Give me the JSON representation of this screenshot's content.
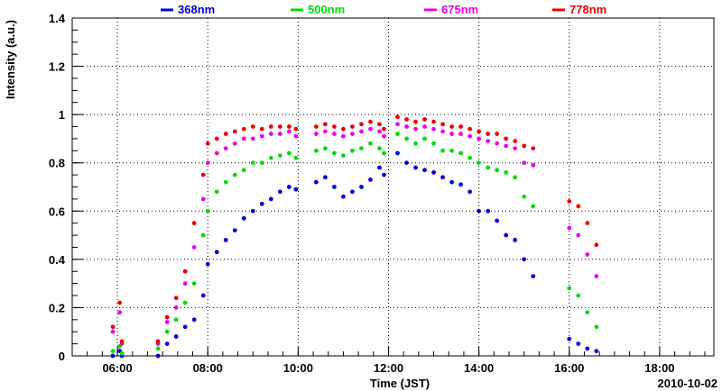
{
  "chart_data": {
    "type": "scatter",
    "title": "",
    "xlabel": "Time (JST)",
    "ylabel": "Intensity (a.u.)",
    "date": "2010-10-02",
    "xlim": [
      5.0,
      19.2
    ],
    "ylim": [
      0,
      1.4
    ],
    "x_ticks": [
      {
        "x": 6,
        "label": "06:00"
      },
      {
        "x": 8,
        "label": "08:00"
      },
      {
        "x": 10,
        "label": "10:00"
      },
      {
        "x": 12,
        "label": "12:00"
      },
      {
        "x": 14,
        "label": "14:00"
      },
      {
        "x": 16,
        "label": "16:00"
      },
      {
        "x": 18,
        "label": "18:00"
      }
    ],
    "y_ticks": [
      {
        "y": 0,
        "label": "0"
      },
      {
        "y": 0.2,
        "label": "0.2"
      },
      {
        "y": 0.4,
        "label": "0.4"
      },
      {
        "y": 0.6,
        "label": "0.6"
      },
      {
        "y": 0.8,
        "label": "0.8"
      },
      {
        "y": 1.0,
        "label": "1"
      },
      {
        "y": 1.2,
        "label": "1.2"
      },
      {
        "y": 1.4,
        "label": "1.4"
      }
    ],
    "grid": true,
    "legend_position": "top",
    "series": [
      {
        "name": "368nm",
        "color": "#0000dd",
        "x": [
          5.9,
          6.05,
          6.1,
          6.9,
          7.1,
          7.3,
          7.5,
          7.7,
          7.9,
          8.0,
          8.2,
          8.4,
          8.6,
          8.8,
          9.0,
          9.2,
          9.4,
          9.6,
          9.8,
          9.95,
          10.4,
          10.6,
          10.8,
          11.0,
          11.2,
          11.4,
          11.6,
          11.8,
          11.9,
          12.2,
          12.4,
          12.6,
          12.8,
          13.0,
          13.2,
          13.4,
          13.6,
          13.8,
          14.0,
          14.2,
          14.4,
          14.6,
          14.8,
          15.0,
          15.2,
          16.0,
          16.2,
          16.4,
          16.6
        ],
        "y": [
          0.0,
          0.02,
          0.0,
          0.0,
          0.05,
          0.08,
          0.12,
          0.15,
          0.25,
          0.38,
          0.43,
          0.48,
          0.52,
          0.57,
          0.6,
          0.63,
          0.65,
          0.68,
          0.7,
          0.69,
          0.72,
          0.74,
          0.7,
          0.66,
          0.68,
          0.7,
          0.73,
          0.78,
          0.75,
          0.84,
          0.8,
          0.78,
          0.77,
          0.76,
          0.74,
          0.72,
          0.71,
          0.68,
          0.6,
          0.6,
          0.56,
          0.5,
          0.48,
          0.4,
          0.33,
          0.07,
          0.05,
          0.03,
          0.02
        ]
      },
      {
        "name": "500nm",
        "color": "#00dd00",
        "x": [
          5.9,
          6.05,
          6.1,
          6.9,
          7.1,
          7.3,
          7.5,
          7.7,
          7.9,
          8.0,
          8.2,
          8.4,
          8.6,
          8.8,
          9.0,
          9.2,
          9.4,
          9.6,
          9.8,
          9.95,
          10.4,
          10.6,
          10.8,
          11.0,
          11.2,
          11.4,
          11.6,
          11.8,
          11.9,
          12.2,
          12.4,
          12.6,
          12.8,
          13.0,
          13.2,
          13.4,
          13.6,
          13.8,
          14.0,
          14.2,
          14.4,
          14.6,
          14.8,
          15.0,
          15.2,
          16.0,
          16.2,
          16.4,
          16.6
        ],
        "y": [
          0.02,
          0.04,
          0.01,
          0.03,
          0.1,
          0.15,
          0.22,
          0.3,
          0.5,
          0.6,
          0.68,
          0.72,
          0.75,
          0.77,
          0.8,
          0.8,
          0.82,
          0.83,
          0.84,
          0.82,
          0.85,
          0.86,
          0.84,
          0.83,
          0.85,
          0.86,
          0.88,
          0.86,
          0.84,
          0.92,
          0.9,
          0.88,
          0.9,
          0.88,
          0.85,
          0.85,
          0.84,
          0.82,
          0.8,
          0.78,
          0.77,
          0.76,
          0.74,
          0.66,
          0.62,
          0.28,
          0.25,
          0.18,
          0.12
        ]
      },
      {
        "name": "675nm",
        "color": "#ee00ee",
        "x": [
          5.9,
          6.05,
          6.1,
          6.9,
          7.1,
          7.3,
          7.5,
          7.7,
          7.9,
          8.0,
          8.2,
          8.4,
          8.6,
          8.8,
          9.0,
          9.2,
          9.4,
          9.6,
          9.8,
          9.95,
          10.4,
          10.6,
          10.8,
          11.0,
          11.2,
          11.4,
          11.6,
          11.8,
          11.9,
          12.2,
          12.4,
          12.6,
          12.8,
          13.0,
          13.2,
          13.4,
          13.6,
          13.8,
          14.0,
          14.2,
          14.4,
          14.6,
          14.8,
          15.0,
          15.2,
          16.0,
          16.2,
          16.4,
          16.6
        ],
        "y": [
          0.1,
          0.18,
          0.05,
          0.05,
          0.14,
          0.2,
          0.3,
          0.45,
          0.65,
          0.8,
          0.84,
          0.86,
          0.88,
          0.9,
          0.9,
          0.91,
          0.92,
          0.92,
          0.93,
          0.91,
          0.92,
          0.93,
          0.92,
          0.91,
          0.92,
          0.93,
          0.94,
          0.93,
          0.91,
          0.96,
          0.95,
          0.94,
          0.95,
          0.94,
          0.93,
          0.92,
          0.92,
          0.91,
          0.9,
          0.89,
          0.88,
          0.87,
          0.86,
          0.8,
          0.79,
          0.53,
          0.5,
          0.42,
          0.33
        ]
      },
      {
        "name": "778nm",
        "color": "#ee0000",
        "x": [
          5.9,
          6.05,
          6.1,
          6.9,
          7.1,
          7.3,
          7.5,
          7.7,
          7.9,
          8.0,
          8.2,
          8.4,
          8.6,
          8.8,
          9.0,
          9.2,
          9.4,
          9.6,
          9.8,
          9.95,
          10.4,
          10.6,
          10.8,
          11.0,
          11.2,
          11.4,
          11.6,
          11.8,
          11.9,
          12.2,
          12.4,
          12.6,
          12.8,
          13.0,
          13.2,
          13.4,
          13.6,
          13.8,
          14.0,
          14.2,
          14.4,
          14.6,
          14.8,
          15.0,
          15.2,
          16.0,
          16.2,
          16.4,
          16.6
        ],
        "y": [
          0.12,
          0.22,
          0.06,
          0.06,
          0.16,
          0.24,
          0.35,
          0.55,
          0.75,
          0.88,
          0.9,
          0.92,
          0.93,
          0.94,
          0.95,
          0.94,
          0.95,
          0.95,
          0.95,
          0.94,
          0.95,
          0.96,
          0.95,
          0.94,
          0.95,
          0.96,
          0.97,
          0.96,
          0.94,
          0.99,
          0.98,
          0.97,
          0.98,
          0.97,
          0.96,
          0.95,
          0.95,
          0.94,
          0.93,
          0.92,
          0.92,
          0.9,
          0.89,
          0.87,
          0.86,
          0.64,
          0.62,
          0.55,
          0.46
        ]
      }
    ]
  }
}
